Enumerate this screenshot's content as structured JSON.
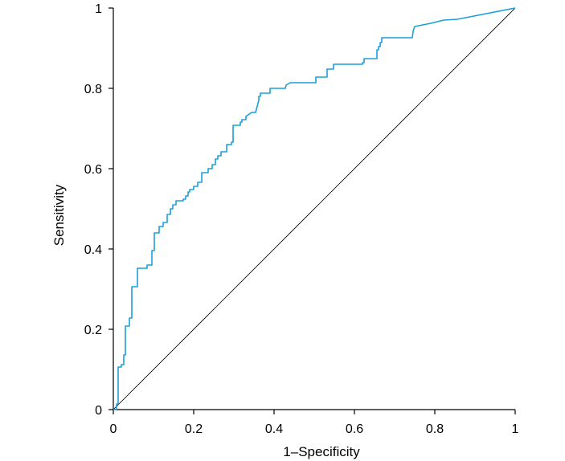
{
  "chart_data": {
    "type": "line",
    "xlabel": "1–Specificity",
    "ylabel": "Sensitivity",
    "xlim": [
      0,
      1
    ],
    "ylim": [
      0,
      1
    ],
    "x_ticks": [
      "0",
      "0.2",
      "0.4",
      "0.6",
      "0.8",
      "1"
    ],
    "y_ticks": [
      "0",
      "0.2",
      "0.4",
      "0.6",
      "0.8",
      "1"
    ],
    "grid": false,
    "legend": "none",
    "colors": {
      "roc": "#1b9fdc",
      "reference": "#000000"
    },
    "series": [
      {
        "x": [
          0,
          0.008,
          0.008,
          0.012,
          0.012,
          0.02,
          0.02,
          0.026,
          0.026,
          0.03,
          0.03,
          0.04,
          0.04,
          0.046,
          0.046,
          0.06,
          0.06,
          0.084,
          0.084,
          0.096,
          0.096,
          0.102,
          0.102,
          0.114,
          0.114,
          0.124,
          0.124,
          0.134,
          0.134,
          0.142,
          0.142,
          0.148,
          0.148,
          0.156,
          0.156,
          0.174,
          0.174,
          0.18,
          0.18,
          0.186,
          0.186,
          0.19,
          0.19,
          0.2,
          0.2,
          0.21,
          0.21,
          0.22,
          0.22,
          0.236,
          0.236,
          0.246,
          0.246,
          0.254,
          0.254,
          0.26,
          0.26,
          0.268,
          0.268,
          0.282,
          0.282,
          0.294,
          0.294,
          0.298,
          0.298,
          0.316,
          0.316,
          0.32,
          0.32,
          0.33,
          0.33,
          0.344,
          0.354,
          0.362,
          0.362,
          0.366,
          0.366,
          0.39,
          0.39,
          0.428,
          0.43,
          0.44,
          0.504,
          0.504,
          0.532,
          0.532,
          0.548,
          0.548,
          0.62,
          0.62,
          0.624,
          0.624,
          0.656,
          0.656,
          0.66,
          0.66,
          0.664,
          0.664,
          0.668,
          0.668,
          0.744,
          0.746,
          0.75,
          0.75,
          0.79,
          0.79,
          0.822,
          0.822,
          0.856,
          1.0
        ],
        "y": [
          0,
          0,
          0.014,
          0.014,
          0.106,
          0.106,
          0.112,
          0.112,
          0.136,
          0.136,
          0.208,
          0.208,
          0.228,
          0.228,
          0.306,
          0.306,
          0.352,
          0.352,
          0.36,
          0.36,
          0.396,
          0.396,
          0.44,
          0.44,
          0.456,
          0.456,
          0.466,
          0.466,
          0.486,
          0.486,
          0.5,
          0.5,
          0.51,
          0.51,
          0.52,
          0.52,
          0.524,
          0.524,
          0.532,
          0.532,
          0.542,
          0.542,
          0.548,
          0.548,
          0.556,
          0.556,
          0.566,
          0.566,
          0.59,
          0.59,
          0.6,
          0.6,
          0.61,
          0.61,
          0.624,
          0.624,
          0.632,
          0.632,
          0.642,
          0.642,
          0.66,
          0.66,
          0.666,
          0.666,
          0.708,
          0.708,
          0.716,
          0.716,
          0.722,
          0.722,
          0.73,
          0.74,
          0.74,
          0.77,
          0.78,
          0.78,
          0.788,
          0.788,
          0.8,
          0.8,
          0.808,
          0.814,
          0.814,
          0.828,
          0.828,
          0.848,
          0.848,
          0.86,
          0.86,
          0.864,
          0.864,
          0.874,
          0.874,
          0.896,
          0.896,
          0.904,
          0.904,
          0.914,
          0.914,
          0.926,
          0.926,
          0.942,
          0.954,
          0.954,
          0.962,
          0.962,
          0.97,
          0.97,
          0.972,
          1.0
        ]
      },
      {
        "x": [
          0,
          1
        ],
        "y": [
          0,
          1
        ]
      }
    ]
  }
}
